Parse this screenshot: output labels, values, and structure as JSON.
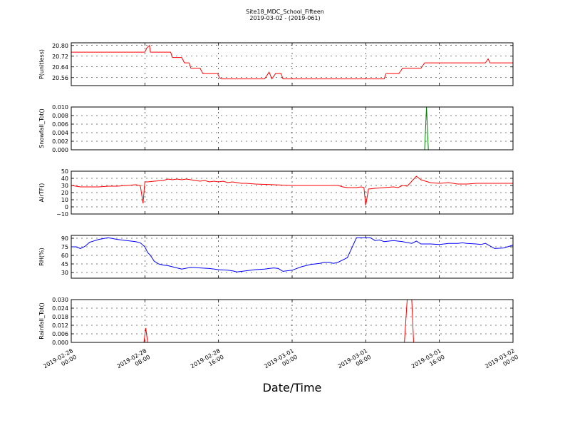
{
  "figure": {
    "title": "Site18_MDC_School_Fifteen",
    "subtitle": "2019-03-02 - (2019-061)",
    "xlabel": "Date/Time"
  },
  "x_ticks": [
    {
      "l1": "2019-02-28",
      "l2": "00:00",
      "hour": 0
    },
    {
      "l1": "2019-02-28",
      "l2": "08:00",
      "hour": 8
    },
    {
      "l1": "2019-02-28",
      "l2": "16:00",
      "hour": 16
    },
    {
      "l1": "2019-03-01",
      "l2": "00:00",
      "hour": 24
    },
    {
      "l1": "2019-03-01",
      "l2": "08:00",
      "hour": 32
    },
    {
      "l1": "2019-03-01",
      "l2": "16:00",
      "hour": 40
    },
    {
      "l1": "2019-03-02",
      "l2": "00:00",
      "hour": 48
    }
  ],
  "colors": {
    "red": "#ff0000",
    "green": "#008000",
    "blue": "#0000ff",
    "grid": "#000000"
  },
  "chart_data": [
    {
      "type": "line",
      "ylabel": "P(unitless)",
      "ylim": [
        20.5,
        20.82
      ],
      "yticks": [
        "20.56",
        "20.64",
        "20.72",
        "20.80"
      ],
      "grid": true,
      "series": [
        {
          "color": "#ff0000",
          "x": [
            0,
            8,
            8.2,
            8.5,
            8.6,
            10.8,
            11,
            12,
            12.3,
            12.8,
            13,
            14,
            14.3,
            14.9,
            15.5,
            15.9,
            16.1,
            16.3,
            21,
            21.5,
            21.8,
            22.2,
            22.5,
            22.8,
            23,
            23.3,
            23.6,
            26,
            34,
            34.2,
            35,
            35.6,
            36,
            36.5,
            36.8,
            38,
            38.4,
            40,
            45,
            45.3,
            45.5,
            48
          ],
          "y": [
            20.75,
            20.75,
            20.78,
            20.8,
            20.75,
            20.75,
            20.71,
            20.71,
            20.67,
            20.67,
            20.63,
            20.63,
            20.59,
            20.59,
            20.59,
            20.59,
            20.56,
            20.55,
            20.55,
            20.6,
            20.55,
            20.59,
            20.59,
            20.59,
            20.55,
            20.55,
            20.55,
            20.55,
            20.55,
            20.59,
            20.59,
            20.59,
            20.63,
            20.63,
            20.63,
            20.63,
            20.67,
            20.67,
            20.67,
            20.7,
            20.67,
            20.67
          ]
        }
      ]
    },
    {
      "type": "line",
      "ylabel": "Snowfall_Tot()",
      "ylim": [
        0,
        0.01
      ],
      "yticks": [
        "0.000",
        "0.002",
        "0.004",
        "0.006",
        "0.008",
        "0.010"
      ],
      "grid": true,
      "series": [
        {
          "color": "#008000",
          "x": [
            0,
            38.4,
            38.6,
            38.8,
            48
          ],
          "y": [
            0,
            0,
            0.01,
            0,
            0
          ]
        }
      ]
    },
    {
      "type": "line",
      "ylabel": "AirTF()",
      "ylim": [
        -10,
        50
      ],
      "yticks": [
        "−10",
        "0",
        "10",
        "20",
        "30",
        "40",
        "50"
      ],
      "grid": true,
      "series": [
        {
          "color": "#ff0000",
          "x": [
            0,
            1,
            2,
            3,
            4,
            5,
            6,
            7,
            7.5,
            7.8,
            8,
            8.3,
            9,
            10,
            10.5,
            11,
            11.5,
            12,
            12.5,
            13,
            13.5,
            14,
            14.5,
            15,
            15.5,
            16,
            16.5,
            17,
            17.5,
            18,
            18.5,
            19,
            20,
            22,
            24,
            26,
            28,
            29,
            29.5,
            30,
            31,
            31.5,
            31.8,
            32,
            32.3,
            33,
            34,
            35,
            35.5,
            36,
            36.5,
            36.8,
            37,
            37.5,
            38,
            39,
            40,
            41,
            41.5,
            42,
            43,
            44,
            45,
            46,
            47,
            48
          ],
          "y": [
            30,
            28,
            28,
            28,
            29,
            29,
            30,
            31,
            30,
            5,
            35,
            35,
            36,
            37,
            39,
            38,
            39,
            38,
            39,
            38,
            37,
            36,
            37,
            35,
            36,
            35,
            36,
            34,
            35,
            34,
            33,
            33,
            32,
            31,
            30,
            30,
            30,
            30,
            28,
            27,
            27,
            28,
            27,
            2,
            25,
            26,
            27,
            28,
            27,
            30,
            29,
            33,
            36,
            43,
            38,
            34,
            33,
            34,
            33,
            32,
            32,
            33,
            33,
            33,
            33,
            33
          ]
        }
      ]
    },
    {
      "type": "line",
      "ylabel": "RH(%)",
      "ylim": [
        20,
        95
      ],
      "yticks": [
        "30",
        "45",
        "60",
        "75",
        "90"
      ],
      "grid": true,
      "series": [
        {
          "color": "#0000ff",
          "x": [
            0,
            0.5,
            1,
            1.5,
            2,
            3,
            4,
            5,
            6,
            6.5,
            7,
            7.5,
            8,
            8.3,
            8.6,
            9,
            9.5,
            10,
            10.5,
            11,
            11.5,
            12,
            13,
            14,
            15,
            16,
            17,
            17.5,
            18,
            19,
            20,
            21,
            21.5,
            22,
            22.5,
            23,
            24,
            25,
            26,
            27,
            27.5,
            28,
            28.5,
            29,
            29.5,
            30,
            31,
            32,
            32.5,
            33,
            33.5,
            34,
            35,
            36,
            37,
            37.5,
            38,
            39,
            40,
            41,
            42,
            42.5,
            43,
            44,
            44.5,
            45,
            46,
            47,
            48
          ],
          "y": [
            75,
            75,
            72,
            76,
            83,
            88,
            91,
            88,
            86,
            85,
            84,
            82,
            75,
            65,
            60,
            50,
            45,
            43,
            42,
            40,
            38,
            36,
            39,
            38,
            37,
            35,
            34,
            33,
            31,
            33,
            35,
            36,
            37,
            38,
            37,
            32,
            34,
            40,
            44,
            46,
            48,
            48,
            46,
            48,
            52,
            56,
            91,
            91,
            91,
            86,
            87,
            84,
            86,
            84,
            81,
            85,
            80,
            80,
            79,
            81,
            81,
            82,
            81,
            80,
            79,
            81,
            72,
            73,
            78
          ]
        }
      ]
    },
    {
      "type": "line",
      "ylabel": "Rainfall_Tot()",
      "ylim": [
        0,
        0.03
      ],
      "yticks": [
        "0.000",
        "0.006",
        "0.012",
        "0.018",
        "0.024",
        "0.030"
      ],
      "grid": true,
      "series": [
        {
          "color": "#ff0000",
          "x": [
            0,
            7.9,
            8.1,
            8.3,
            36.2,
            36.5,
            36.8,
            37,
            37.2,
            48
          ],
          "y": [
            0,
            0,
            0.01,
            0,
            0,
            0.03,
            0.03,
            0.03,
            0,
            0
          ]
        }
      ]
    }
  ]
}
